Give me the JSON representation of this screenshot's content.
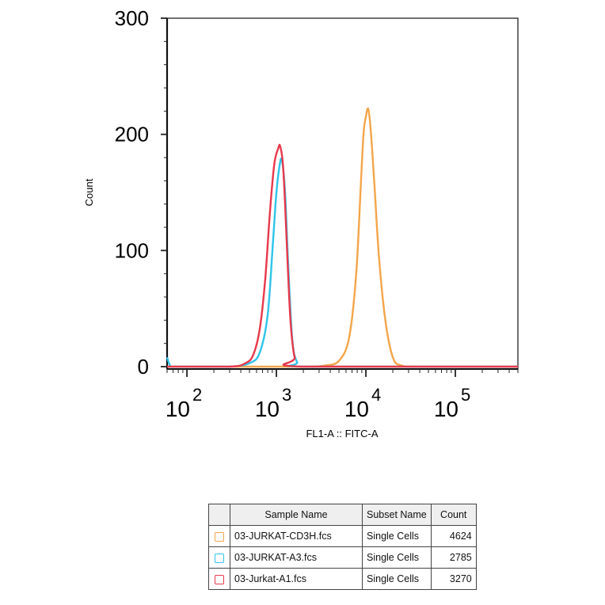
{
  "chart_data": {
    "type": "line",
    "xlabel": "FL1-A :: FITC-A",
    "ylabel": "Count",
    "x_scale": "log",
    "xlim": [
      60,
      500000
    ],
    "ylim": [
      0,
      300
    ],
    "x_ticks": [
      {
        "base": "10",
        "exp": "2",
        "value": 100
      },
      {
        "base": "10",
        "exp": "3",
        "value": 1000
      },
      {
        "base": "10",
        "exp": "4",
        "value": 10000
      },
      {
        "base": "10",
        "exp": "5",
        "value": 100000
      }
    ],
    "y_ticks": [
      "0",
      "100",
      "200",
      "300"
    ],
    "y_tick_values": [
      0,
      100,
      200,
      300
    ],
    "series": [
      {
        "name": "03-JURKAT-CD3H.fcs",
        "color": "#f4a54a",
        "x": [
          300,
          2000,
          3500,
          5000,
          6500,
          7800,
          8700,
          9400,
          10000,
          10600,
          11300,
          12500,
          14000,
          16500,
          20000,
          25000,
          40000,
          500000
        ],
        "y": [
          0,
          0,
          1,
          5,
          25,
          80,
          150,
          200,
          215,
          222,
          205,
          155,
          95,
          40,
          8,
          1,
          0,
          0
        ]
      },
      {
        "name": "03-JURKAT-A3.fcs",
        "color": "#2ec4ea",
        "x": [
          60,
          63,
          66,
          70,
          100,
          300,
          500,
          650,
          800,
          920,
          1000,
          1080,
          1150,
          1250,
          1350,
          1500,
          1700,
          2200,
          500000
        ],
        "y": [
          8,
          3,
          0,
          0,
          0,
          0,
          3,
          12,
          45,
          110,
          150,
          172,
          178,
          150,
          90,
          25,
          4,
          0,
          0
        ]
      },
      {
        "name": "03-Jurkat-A1.fcs",
        "color": "#e8394c",
        "x": [
          60,
          300,
          450,
          550,
          650,
          750,
          850,
          950,
          1050,
          1100,
          1180,
          1250,
          1350,
          1450,
          1600,
          1900,
          500000
        ],
        "y": [
          0,
          0,
          3,
          10,
          32,
          75,
          135,
          175,
          188,
          190,
          175,
          140,
          80,
          35,
          8,
          0,
          0
        ]
      }
    ],
    "legend_table": {
      "headers": [
        "Sample Name",
        "Subset Name",
        "Count"
      ],
      "rows": [
        {
          "sample": "03-JURKAT-CD3H.fcs",
          "subset": "Single Cells",
          "count": "4624",
          "color": "#f4a54a"
        },
        {
          "sample": "03-JURKAT-A3.fcs",
          "subset": "Single Cells",
          "count": "2785",
          "color": "#2ec4ea"
        },
        {
          "sample": "03-Jurkat-A1.fcs",
          "subset": "Single Cells",
          "count": "3270",
          "color": "#e8394c"
        }
      ]
    }
  }
}
